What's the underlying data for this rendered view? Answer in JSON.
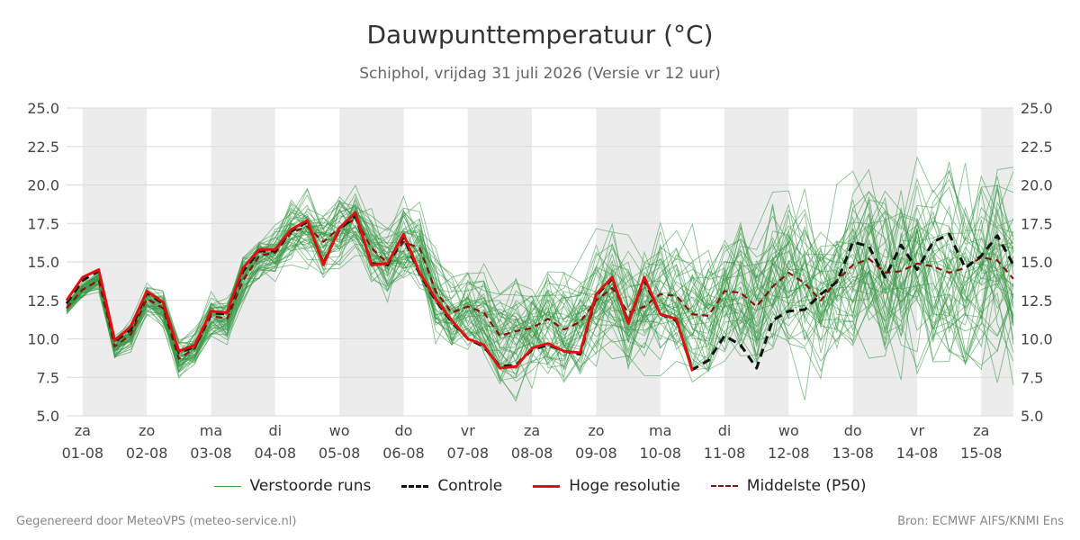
{
  "header": {
    "title": "Dauwpunttemperatuur (°C)",
    "subtitle": "Schiphol, vrijdag 31 juli 2026 (Versie vr 12 uur)"
  },
  "legend": {
    "items": [
      {
        "label": "Verstoorde runs",
        "color": "#3a9a48",
        "style": "thin"
      },
      {
        "label": "Controle",
        "color": "#111111",
        "style": "dashed"
      },
      {
        "label": "Hoge resolutie",
        "color": "#e01010",
        "style": "solid"
      },
      {
        "label": "Middelste (P50)",
        "color": "#8b1010",
        "style": "dashed"
      }
    ]
  },
  "footer": {
    "left": "Gegenereerd door MeteoVPS (meteo-service.nl)",
    "right": "Bron: ECMWF AIFS/KNMI Ens"
  },
  "chart_data": {
    "type": "line",
    "title": "Dauwpunttemperatuur (°C)",
    "subtitle": "Schiphol, vrijdag 31 juli 2026 (Versie vr 12 uur)",
    "ylim": [
      5.0,
      25.0
    ],
    "yticks": [
      "5.0",
      "7.5",
      "10.0",
      "12.5",
      "15.0",
      "17.5",
      "20.0",
      "22.5",
      "25.0"
    ],
    "xlim": [
      -0.25,
      14.5
    ],
    "x_unit": "days since 01-08",
    "xticks": [
      {
        "day": "za",
        "date": "01-08"
      },
      {
        "day": "zo",
        "date": "02-08"
      },
      {
        "day": "ma",
        "date": "03-08"
      },
      {
        "day": "di",
        "date": "04-08"
      },
      {
        "day": "wo",
        "date": "05-08"
      },
      {
        "day": "do",
        "date": "06-08"
      },
      {
        "day": "vr",
        "date": "07-08"
      },
      {
        "day": "za",
        "date": "08-08"
      },
      {
        "day": "zo",
        "date": "09-08"
      },
      {
        "day": "ma",
        "date": "10-08"
      },
      {
        "day": "di",
        "date": "11-08"
      },
      {
        "day": "wo",
        "date": "12-08"
      },
      {
        "day": "do",
        "date": "13-08"
      },
      {
        "day": "vr",
        "date": "14-08"
      },
      {
        "day": "za",
        "date": "15-08"
      }
    ],
    "grid": true,
    "legend_position": "bottom",
    "colors": {
      "ensemble": "#3a9a48",
      "control": "#111111",
      "hires": "#e01010",
      "median": "#8b1010",
      "weekend_band": "#ececec"
    },
    "series": [
      {
        "name": "Hoge resolutie",
        "x": [
          -0.25,
          0,
          0.25,
          0.5,
          0.75,
          1,
          1.25,
          1.5,
          1.75,
          2,
          2.25,
          2.5,
          2.75,
          3,
          3.25,
          3.5,
          3.75,
          4,
          4.25,
          4.5,
          4.75,
          5,
          5.25,
          5.5,
          5.75,
          6,
          6.25,
          6.5,
          6.75,
          7,
          7.25,
          7.5,
          7.75,
          8,
          8.25,
          8.5,
          8.75,
          9,
          9.25,
          9.5
        ],
        "values": [
          12.5,
          14.0,
          14.5,
          9.9,
          10.8,
          13.1,
          12.4,
          9.2,
          9.6,
          11.8,
          11.7,
          14.6,
          15.8,
          15.8,
          17.1,
          17.7,
          14.8,
          17.2,
          18.2,
          14.8,
          14.9,
          16.8,
          14.3,
          12.6,
          11.2,
          10.0,
          9.6,
          8.1,
          8.2,
          9.4,
          9.7,
          9.2,
          9.1,
          12.9,
          14.0,
          11.0,
          14.0,
          11.6,
          11.3,
          7.9
        ]
      },
      {
        "name": "Controle",
        "x": [
          -0.25,
          0,
          0.25,
          0.5,
          0.75,
          1,
          1.25,
          1.5,
          1.75,
          2,
          2.25,
          2.5,
          2.75,
          3,
          3.25,
          3.5,
          3.75,
          4,
          4.25,
          4.5,
          4.75,
          5,
          5.25,
          5.5,
          5.75,
          6,
          6.25,
          6.5,
          6.75,
          7,
          7.25,
          7.5,
          7.75,
          8,
          8.25,
          8.5,
          8.75,
          9,
          9.25,
          9.5,
          9.75,
          10,
          10.25,
          10.5,
          10.75,
          11,
          11.25,
          11.5,
          11.75,
          12,
          12.25,
          12.5,
          12.75,
          13,
          13.25,
          13.5,
          13.75,
          14,
          14.25,
          14.5
        ],
        "values": [
          12.3,
          13.8,
          14.4,
          9.8,
          10.6,
          13.0,
          12.3,
          9.1,
          9.5,
          11.7,
          11.6,
          14.4,
          15.7,
          15.7,
          17.0,
          17.6,
          14.9,
          17.1,
          18.0,
          14.9,
          14.8,
          16.6,
          14.2,
          12.5,
          11.1,
          10.0,
          9.5,
          8.2,
          8.3,
          9.3,
          9.6,
          9.2,
          9.0,
          12.8,
          13.9,
          11.1,
          13.8,
          11.6,
          11.2,
          8.0,
          8.6,
          10.2,
          9.6,
          8.1,
          11.2,
          11.8,
          11.9,
          12.9,
          13.7,
          16.3,
          16.0,
          14.0,
          16.1,
          14.5,
          16.3,
          16.8,
          14.6,
          15.4,
          16.7,
          14.8
        ]
      },
      {
        "name": "Middelste (P50)",
        "x": [
          -0.25,
          0,
          0.25,
          0.5,
          0.75,
          1,
          1.25,
          1.5,
          1.75,
          2,
          2.25,
          2.5,
          2.75,
          3,
          3.25,
          3.5,
          3.75,
          4,
          4.25,
          4.5,
          4.75,
          5,
          5.25,
          5.5,
          5.75,
          6,
          6.25,
          6.5,
          6.75,
          7,
          7.25,
          7.5,
          7.75,
          8,
          8.25,
          8.5,
          8.75,
          9,
          9.25,
          9.5,
          9.75,
          10,
          10.25,
          10.5,
          10.75,
          11,
          11.25,
          11.5,
          11.75,
          12,
          12.25,
          12.5,
          12.75,
          13,
          13.25,
          13.5,
          13.75,
          14,
          14.25,
          14.5
        ],
        "values": [
          12.0,
          13.2,
          13.8,
          9.5,
          10.3,
          12.6,
          12.0,
          8.7,
          9.4,
          11.5,
          11.3,
          13.8,
          15.4,
          15.6,
          16.9,
          17.3,
          16.3,
          17.2,
          17.8,
          15.9,
          14.9,
          16.3,
          15.9,
          13.1,
          11.7,
          12.1,
          11.7,
          10.2,
          10.5,
          10.7,
          11.3,
          10.6,
          11.1,
          12.5,
          13.3,
          11.7,
          12.1,
          12.9,
          12.8,
          11.6,
          11.5,
          13.1,
          13.0,
          12.1,
          13.4,
          14.3,
          13.6,
          12.5,
          13.8,
          14.8,
          15.2,
          14.3,
          14.4,
          14.9,
          14.7,
          14.3,
          14.6,
          15.3,
          15.1,
          13.9
        ]
      }
    ],
    "ensemble_runs": 50
  }
}
